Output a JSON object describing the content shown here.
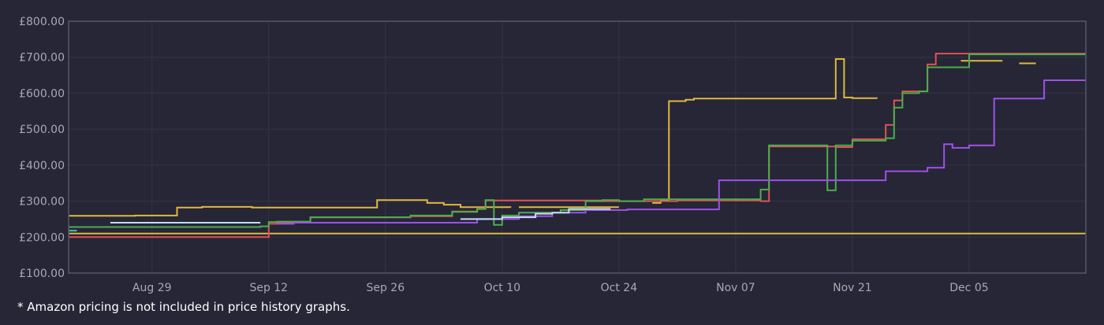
{
  "chart_data": {
    "type": "line",
    "title": "",
    "xlabel": "",
    "ylabel": "",
    "ylim": [
      100,
      800
    ],
    "yticks": [
      100,
      200,
      300,
      400,
      500,
      600,
      700,
      800
    ],
    "ytick_labels": [
      "£100.00",
      "£200.00",
      "£300.00",
      "£400.00",
      "£500.00",
      "£600.00",
      "£700.00",
      "£800.00"
    ],
    "xlim": [
      "2024-08-19",
      "2024-12-19"
    ],
    "xticks": [
      "2024-08-29",
      "2024-09-12",
      "2024-09-26",
      "2024-10-10",
      "2024-10-24",
      "2024-11-07",
      "2024-11-21",
      "2024-12-05"
    ],
    "xtick_labels": [
      "Aug 29",
      "Sep 12",
      "Sep 26",
      "Oct 10",
      "Oct 24",
      "Nov 07",
      "Nov 21",
      "Dec 05"
    ],
    "grid": true,
    "step": true,
    "series": [
      {
        "color": "#e0b840",
        "points": [
          [
            "2024-08-19",
            210
          ],
          [
            "2024-12-19",
            210
          ]
        ]
      },
      {
        "color": "#e0b840",
        "points": [
          [
            "2024-08-19",
            259
          ],
          [
            "2024-08-27",
            260
          ],
          [
            "2024-09-01",
            282
          ],
          [
            "2024-09-04",
            284
          ],
          [
            "2024-09-10",
            282
          ],
          [
            "2024-09-25",
            303
          ],
          [
            "2024-10-01",
            295
          ],
          [
            "2024-10-03",
            290
          ],
          [
            "2024-10-05",
            283
          ],
          [
            "2024-10-11",
            282
          ],
          [
            null,
            null
          ],
          [
            "2024-10-12",
            283
          ],
          [
            "2024-10-24",
            283
          ],
          [
            null,
            null
          ],
          [
            "2024-10-28",
            295
          ],
          [
            "2024-10-29",
            302
          ],
          [
            "2024-10-30",
            578
          ],
          [
            "2024-11-01",
            582
          ],
          [
            "2024-11-02",
            585
          ],
          [
            "2024-11-19",
            585
          ],
          [
            "2024-11-19",
            695
          ],
          [
            "2024-11-20",
            695
          ],
          [
            "2024-11-20",
            588
          ],
          [
            "2024-11-21",
            586
          ],
          [
            "2024-11-24",
            586
          ],
          [
            null,
            null
          ],
          [
            "2024-12-04",
            690
          ],
          [
            "2024-12-09",
            690
          ],
          [
            null,
            null
          ],
          [
            "2024-12-11",
            683
          ],
          [
            "2024-12-13",
            683
          ]
        ]
      },
      {
        "color": "#e05252",
        "points": [
          [
            "2024-08-19",
            200
          ],
          [
            "2024-09-11",
            200
          ],
          [
            "2024-09-12",
            237
          ],
          [
            "2024-09-13",
            240
          ],
          [
            "2024-09-17",
            255
          ],
          [
            "2024-09-29",
            258
          ],
          [
            "2024-10-04",
            271
          ],
          [
            "2024-10-07",
            280
          ],
          [
            "2024-10-08",
            302
          ],
          [
            "2024-10-22",
            300
          ],
          [
            "2024-10-31",
            302
          ],
          [
            "2024-11-10",
            300
          ],
          [
            "2024-11-11",
            452
          ],
          [
            "2024-11-19",
            450
          ],
          [
            "2024-11-21",
            472
          ],
          [
            "2024-11-25",
            512
          ],
          [
            "2024-11-26",
            580
          ],
          [
            "2024-11-27",
            605
          ],
          [
            "2024-11-30",
            680
          ],
          [
            "2024-12-01",
            710
          ],
          [
            "2024-12-19",
            710
          ]
        ]
      },
      {
        "color": "#4cae4c",
        "points": [
          [
            "2024-08-19",
            228
          ],
          [
            "2024-09-11",
            230
          ],
          [
            "2024-09-12",
            242
          ],
          [
            "2024-09-13",
            243
          ],
          [
            "2024-09-17",
            255
          ],
          [
            "2024-09-29",
            260
          ],
          [
            "2024-10-04",
            270
          ],
          [
            "2024-10-07",
            278
          ],
          [
            "2024-10-08",
            303
          ],
          [
            "2024-10-09",
            234
          ],
          [
            "2024-10-10",
            260
          ],
          [
            "2024-10-12",
            268
          ],
          [
            "2024-10-17",
            275
          ],
          [
            "2024-10-20",
            300
          ],
          [
            "2024-10-22",
            303
          ],
          [
            "2024-10-24",
            300
          ],
          [
            "2024-10-27",
            305
          ],
          [
            "2024-11-10",
            332
          ],
          [
            "2024-11-11",
            455
          ],
          [
            "2024-11-18",
            455
          ],
          [
            "2024-11-18",
            330
          ],
          [
            "2024-11-19",
            330
          ],
          [
            "2024-11-19",
            455
          ],
          [
            "2024-11-21",
            468
          ],
          [
            "2024-11-25",
            475
          ],
          [
            "2024-11-26",
            560
          ],
          [
            "2024-11-27",
            600
          ],
          [
            "2024-11-29",
            605
          ],
          [
            "2024-11-30",
            672
          ],
          [
            "2024-12-05",
            672
          ],
          [
            "2024-12-05",
            708
          ],
          [
            "2024-12-19",
            708
          ]
        ]
      },
      {
        "color": "#a050e8",
        "points": [
          [
            "2024-09-13",
            237
          ],
          [
            "2024-09-15",
            240
          ],
          [
            "2024-10-07",
            250
          ],
          [
            "2024-10-12",
            258
          ],
          [
            "2024-10-16",
            268
          ],
          [
            "2024-10-20",
            275
          ],
          [
            "2024-10-25",
            277
          ],
          [
            "2024-11-05",
            277
          ],
          [
            "2024-11-05",
            358
          ],
          [
            "2024-11-25",
            358
          ],
          [
            "2024-11-25",
            383
          ],
          [
            "2024-11-30",
            383
          ],
          [
            "2024-11-30",
            393
          ],
          [
            "2024-12-02",
            393
          ],
          [
            "2024-12-02",
            458
          ],
          [
            "2024-12-03",
            448
          ],
          [
            "2024-12-04",
            448
          ],
          [
            "2024-12-05",
            455
          ],
          [
            "2024-12-08",
            455
          ],
          [
            "2024-12-08",
            585
          ],
          [
            "2024-12-14",
            585
          ],
          [
            "2024-12-14",
            636
          ],
          [
            "2024-12-19",
            636
          ]
        ]
      },
      {
        "color": "#c4dcf4",
        "points": [
          [
            "2024-08-24",
            240
          ],
          [
            "2024-09-11",
            240
          ],
          [
            null,
            null
          ],
          [
            "2024-10-05",
            250
          ],
          [
            "2024-10-10",
            255
          ],
          [
            "2024-10-14",
            265
          ],
          [
            "2024-10-16",
            268
          ],
          [
            "2024-10-18",
            278
          ],
          [
            "2024-10-23",
            278
          ]
        ]
      },
      {
        "color": "#4ab8c8",
        "points": [
          [
            "2024-08-19",
            218
          ],
          [
            "2024-08-20",
            218
          ]
        ]
      }
    ]
  },
  "footnote": "* Amazon pricing is not included in price history graphs."
}
